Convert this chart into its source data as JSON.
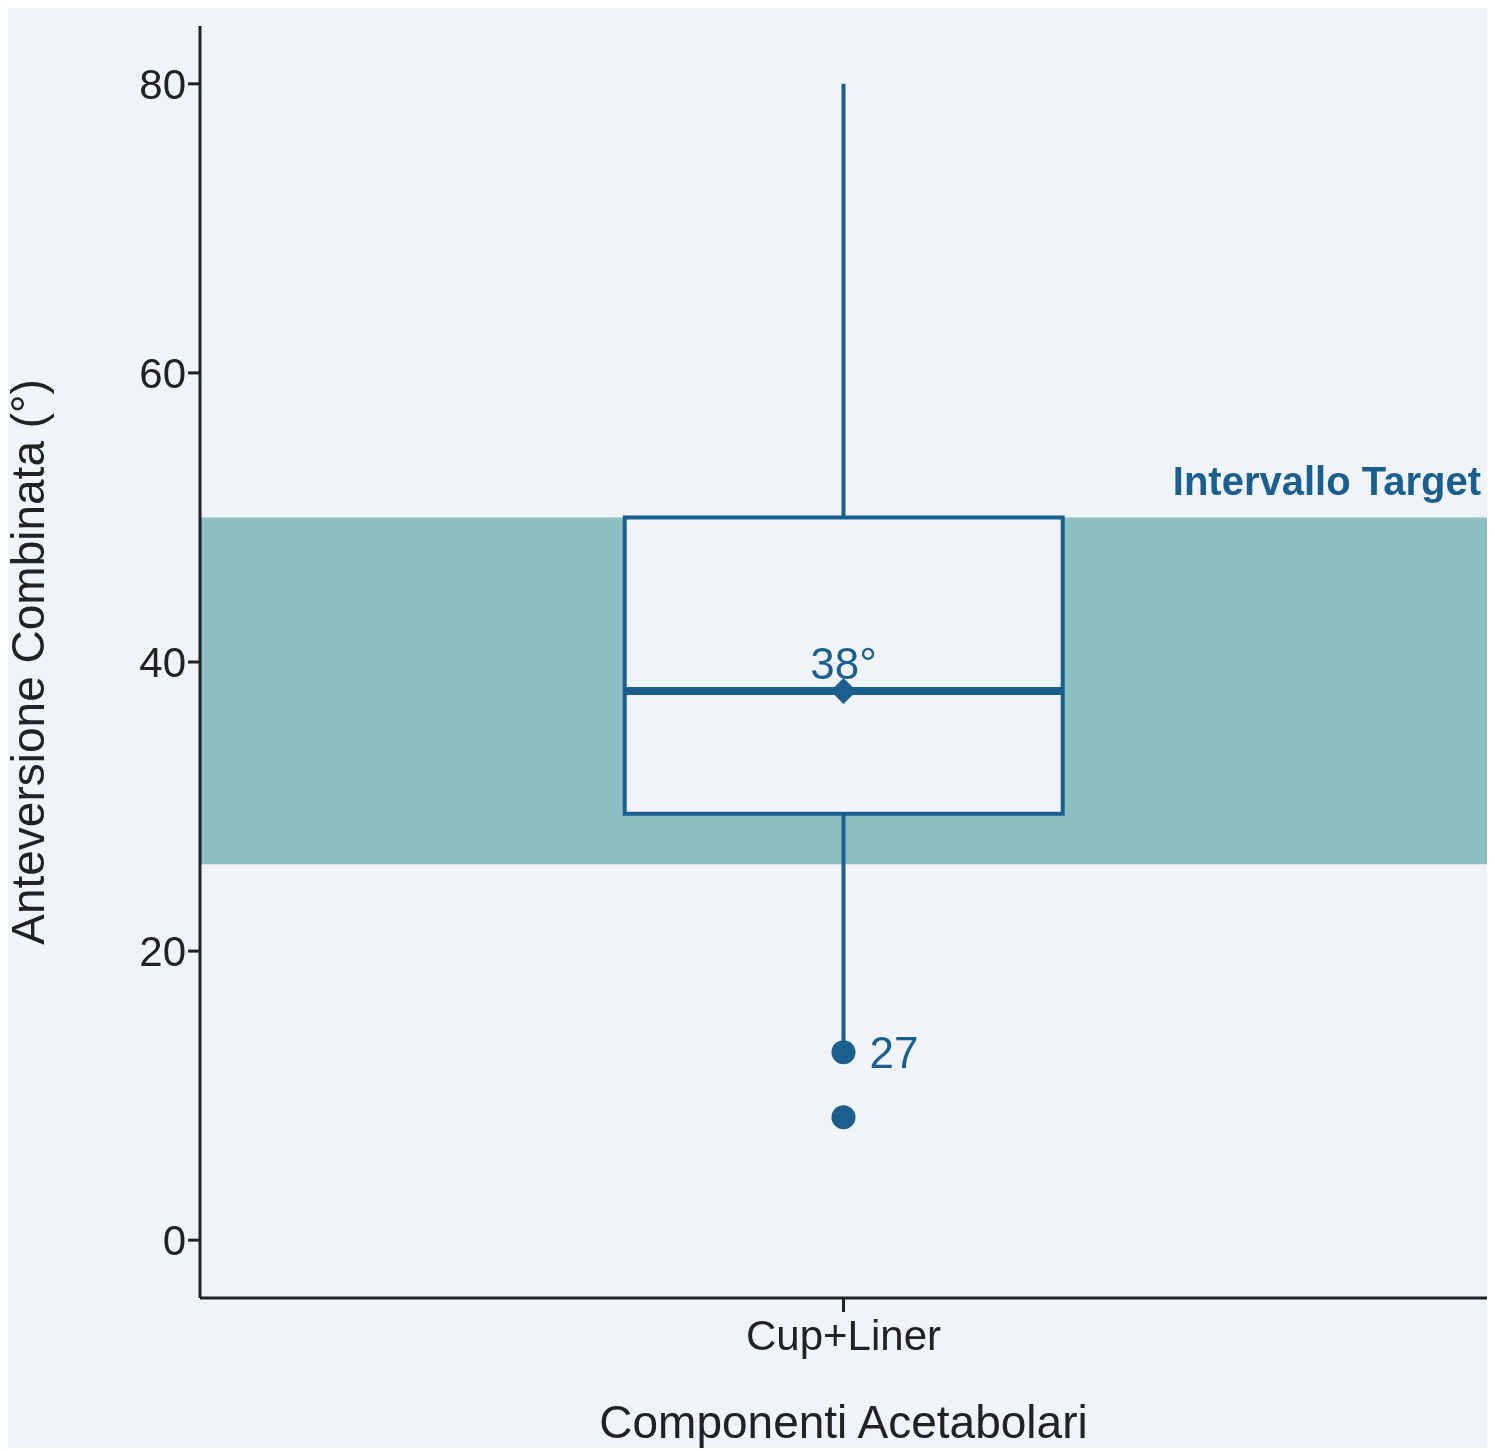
{
  "chart_data": {
    "type": "box",
    "xlabel": "Componenti Acetabolari",
    "ylabel": "Anteversione Combinata (°)",
    "categories": [
      "Cup+Liner"
    ],
    "color": "#1a5f8e",
    "boxes": [
      {
        "low": 13,
        "q1": 29.5,
        "median": 38,
        "q3": 50,
        "high": 80,
        "mean": 38,
        "outliers": [
          13,
          8.5
        ]
      }
    ],
    "ylim": [
      -4,
      84
    ],
    "yticks": [
      0,
      20,
      40,
      60,
      80
    ],
    "bands": [
      {
        "axis": "y",
        "from": 26,
        "to": 50,
        "label": "Intervallo Target",
        "color": "#8bbfc4"
      }
    ],
    "annotations": [
      {
        "text": "38°",
        "x": "Cup+Liner",
        "y": 38
      },
      {
        "text": "27",
        "x": "Cup+Liner",
        "y": 13
      }
    ]
  }
}
